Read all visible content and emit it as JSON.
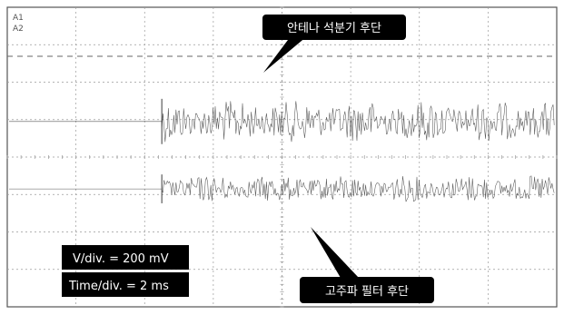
{
  "chart_data": {
    "type": "line",
    "channels": [
      "A1",
      "A2"
    ],
    "series": [
      {
        "name": "안테나 석분기 후단",
        "baseline_div": 3.05,
        "amplitude_div": 0.55,
        "start_time_div": 2.25
      },
      {
        "name": "고주파 필터 후단",
        "baseline_div": 4.85,
        "amplitude_div": 0.35,
        "start_time_div": 2.25
      }
    ],
    "grid": {
      "x_divisions": 8,
      "y_divisions": 8,
      "style": "dotted"
    },
    "annotations": [
      "안테나 석분기 후단",
      "고주파 필터 후단"
    ],
    "scale": {
      "vdiv": "V/div. = 200 mV",
      "tdiv": "Time/div. = 2 ms"
    }
  },
  "colors": {
    "trace": "#3a3a3a",
    "grid": "#9a9a9a",
    "callout_bg": "#000000",
    "callout_text": "#ffffff"
  }
}
